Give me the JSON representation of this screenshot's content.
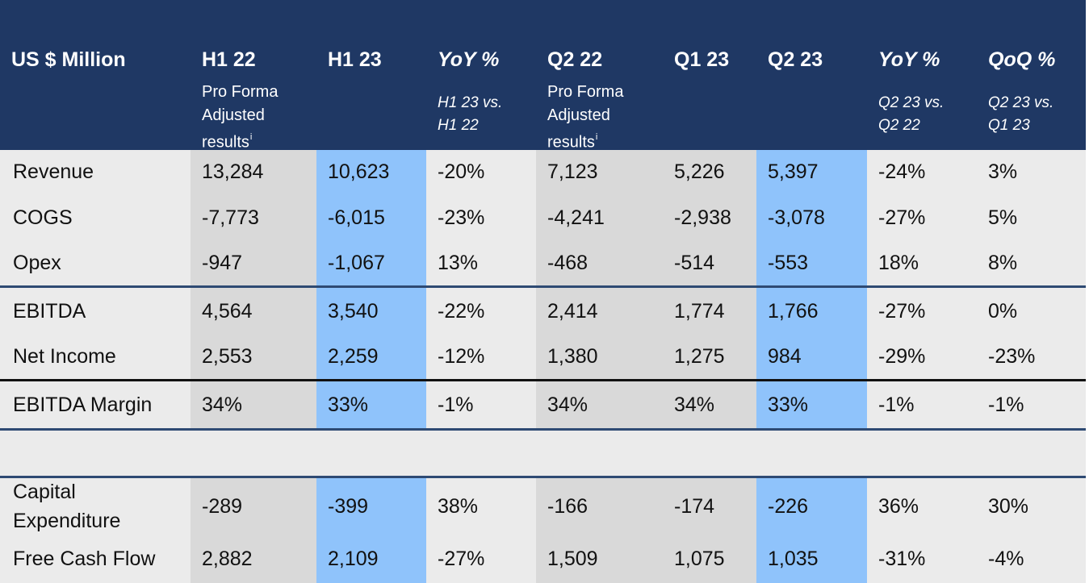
{
  "table": {
    "header": {
      "label": "US $ Million",
      "columns": [
        {
          "title": "H1 22",
          "sub": "Pro Forma\nAdjusted\nresults",
          "sup": "i"
        },
        {
          "title": "H1 23",
          "sub": ""
        },
        {
          "title": "YoY %",
          "sub_italic": "H1 23 vs.\nH1 22"
        },
        {
          "title": "Q2 22",
          "sub": "Pro Forma\nAdjusted\nresults",
          "sup": "i"
        },
        {
          "title": "Q1 23",
          "sub": ""
        },
        {
          "title": "Q2 23",
          "sub": ""
        },
        {
          "title": "YoY %",
          "sub_italic": "Q2 23 vs.\nQ2 22"
        },
        {
          "title": "QoQ %",
          "sub_italic": "Q2 23 vs.\nQ1 23"
        }
      ]
    },
    "rows": [
      {
        "label": "Revenue",
        "values": [
          "13,284",
          "10,623",
          "-20%",
          "7,123",
          "5,226",
          "5,397",
          "-24%",
          "3%"
        ]
      },
      {
        "label": "COGS",
        "values": [
          "-7,773",
          "-6,015",
          "-23%",
          "-4,241",
          "-2,938",
          "-3,078",
          "-27%",
          "5%"
        ]
      },
      {
        "label": "Opex",
        "values": [
          "-947",
          "-1,067",
          "13%",
          "-468",
          "-514",
          "-553",
          "18%",
          "8%"
        ]
      },
      {
        "label": "EBITDA",
        "values": [
          "4,564",
          "3,540",
          "-22%",
          "2,414",
          "1,774",
          "1,766",
          "-27%",
          "0%"
        ]
      },
      {
        "label": "Net Income",
        "values": [
          "2,553",
          "2,259",
          "-12%",
          "1,380",
          "1,275",
          "984",
          "-29%",
          "-23%"
        ]
      },
      {
        "label": "EBITDA Margin",
        "values": [
          "34%",
          "33%",
          "-1%",
          "34%",
          "34%",
          "33%",
          "-1%",
          "-1%"
        ]
      },
      {
        "label": "Capital\nExpenditure",
        "values": [
          "-289",
          "-399",
          "38%",
          "-166",
          "-174",
          "-226",
          "36%",
          "30%"
        ]
      },
      {
        "label": "Free Cash Flow",
        "values": [
          "2,882",
          "2,109",
          "-27%",
          "1,509",
          "1,075",
          "1,035",
          "-31%",
          "-4%"
        ]
      }
    ],
    "colors": {
      "header_bg": "#1f3864",
      "band_light": "#ebebeb",
      "band_grey": "#d9d9d9",
      "highlight_blue": "#8fc3fb",
      "rule_blue": "#2e4a73"
    }
  }
}
